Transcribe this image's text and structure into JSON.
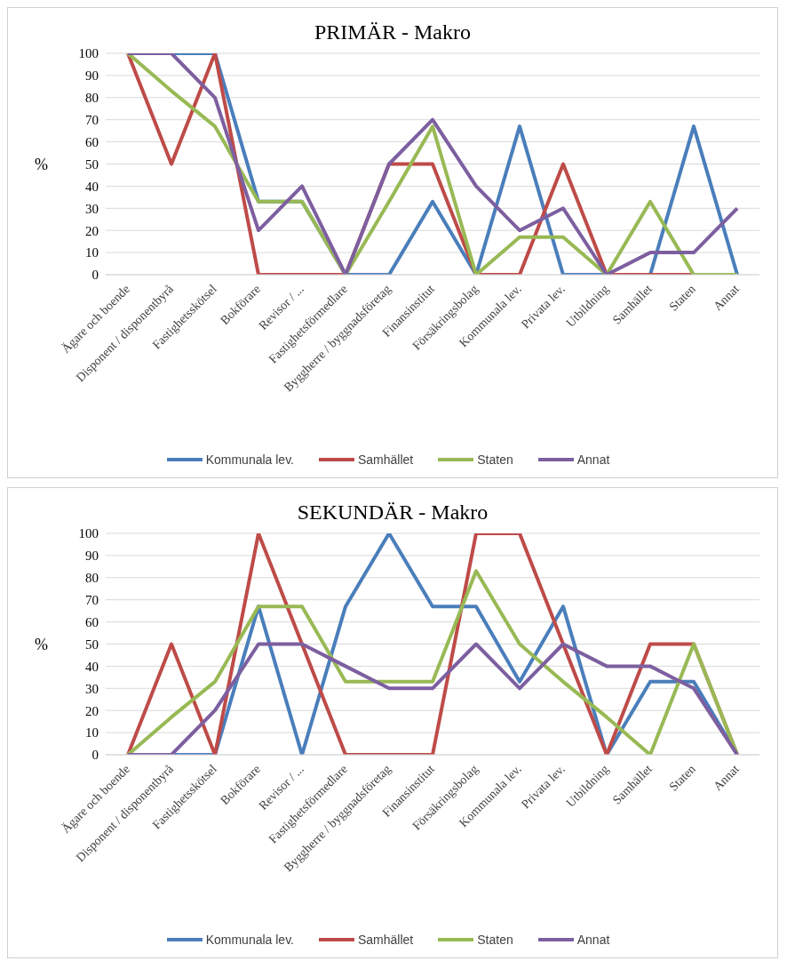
{
  "chart_data": [
    {
      "type": "line",
      "title": "PRIMÄR - Makro",
      "ylabel": "%",
      "categories": [
        "Ägare och boende",
        "Disponent / disponentbyrå",
        "Fastighetsskötsel",
        "Bokförare",
        "Revisor / ...",
        "Fastighetsförmedlare",
        "Byggherre / byggnadsföretag",
        "Finansinstitut",
        "Försäkringsbolag",
        "Kommunala lev.",
        "Privata lev.",
        "Utbildning",
        "Samhället",
        "Staten",
        "Annat"
      ],
      "ylim": [
        0,
        100
      ],
      "yticks": [
        0,
        10,
        20,
        30,
        40,
        50,
        60,
        70,
        80,
        90,
        100
      ],
      "grid": "y",
      "legend": "bottom",
      "marker": "none",
      "line_style": "solid",
      "series": [
        {
          "name": "Kommunala lev.",
          "color": "#4a7ebb",
          "values": [
            100,
            100,
            100,
            33,
            33,
            0,
            0,
            33,
            0,
            67,
            0,
            0,
            0,
            67,
            0
          ]
        },
        {
          "name": "Samhället",
          "color": "#be4b48",
          "values": [
            100,
            50,
            100,
            0,
            0,
            0,
            50,
            50,
            0,
            0,
            50,
            0,
            0,
            0,
            0
          ]
        },
        {
          "name": "Staten",
          "color": "#98b954",
          "values": [
            100,
            83,
            67,
            33,
            33,
            0,
            33,
            67,
            0,
            17,
            17,
            0,
            33,
            0,
            0
          ]
        },
        {
          "name": "Annat",
          "color": "#7d5fa0",
          "values": [
            100,
            100,
            80,
            20,
            40,
            0,
            50,
            70,
            40,
            20,
            30,
            0,
            10,
            10,
            30
          ]
        }
      ]
    },
    {
      "type": "line",
      "title": "SEKUNDÄR - Makro",
      "ylabel": "%",
      "categories": [
        "Ägare och boende",
        "Disponent / disponentbyrå",
        "Fastighetsskötsel",
        "Bokförare",
        "Revisor / ...",
        "Fastighetsförmedlare",
        "Byggherre / byggnadsföretag",
        "Finansinstitut",
        "Försäkringsbolag",
        "Kommunala lev.",
        "Privata lev.",
        "Utbildning",
        "Samhället",
        "Staten",
        "Annat"
      ],
      "ylim": [
        0,
        100
      ],
      "yticks": [
        0,
        10,
        20,
        30,
        40,
        50,
        60,
        70,
        80,
        90,
        100
      ],
      "grid": "y",
      "legend": "bottom",
      "marker": "none",
      "line_style": "solid",
      "series": [
        {
          "name": "Kommunala lev.",
          "color": "#4a7ebb",
          "values": [
            0,
            0,
            0,
            67,
            0,
            67,
            100,
            67,
            67,
            33,
            67,
            0,
            33,
            33,
            0
          ]
        },
        {
          "name": "Samhället",
          "color": "#be4b48",
          "values": [
            0,
            50,
            0,
            100,
            50,
            0,
            0,
            0,
            100,
            100,
            50,
            0,
            50,
            50,
            0
          ]
        },
        {
          "name": "Staten",
          "color": "#98b954",
          "values": [
            0,
            17,
            33,
            67,
            67,
            33,
            33,
            33,
            83,
            50,
            33,
            17,
            0,
            50,
            0
          ]
        },
        {
          "name": "Annat",
          "color": "#7d5fa0",
          "values": [
            0,
            0,
            20,
            50,
            50,
            40,
            30,
            30,
            50,
            30,
            50,
            40,
            40,
            30,
            0
          ]
        }
      ]
    }
  ]
}
